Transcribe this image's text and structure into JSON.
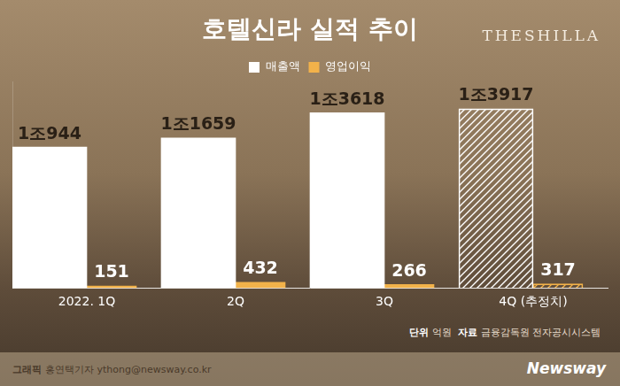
{
  "chart_data": {
    "type": "bar",
    "title": "호텔신라 실적 추이",
    "categories": [
      "2022. 1Q",
      "2Q",
      "3Q",
      "4Q (추정치)"
    ],
    "series": [
      {
        "name": "매출액",
        "color": "#ffffff",
        "values": [
          10944,
          11659,
          13618,
          13917
        ],
        "value_labels": [
          "1조944",
          "1조1659",
          "1조3618",
          "1조3917"
        ]
      },
      {
        "name": "영업이익",
        "color": "#f2b24a",
        "values": [
          151,
          432,
          266,
          317
        ]
      }
    ],
    "ylim": [
      0,
      16000
    ],
    "grid": false,
    "legend": "top",
    "data_labels": true,
    "tick_labels": "x"
  },
  "header": {
    "brand": "THESHILLA"
  },
  "notes": {
    "unit_label": "단위",
    "unit": "억원",
    "source_label": "자료",
    "source": "금융감독원 전자공시시스템"
  },
  "footer": {
    "credit_label": "그래픽",
    "credit": "홍연택기자 ythong@newsway.co.kr",
    "publisher": "Newsway"
  }
}
